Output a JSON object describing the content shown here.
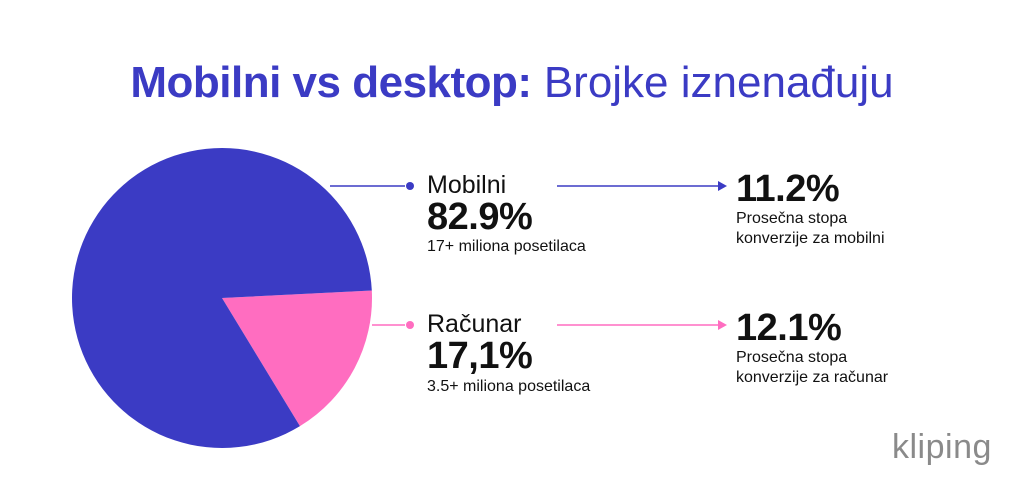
{
  "title": {
    "bold": "Mobilni vs desktop:",
    "light": "Brojke iznenađuju"
  },
  "chart_data": {
    "type": "pie",
    "slices": [
      {
        "name": "Mobilni",
        "value": 82.9,
        "color": "#3b3bc4"
      },
      {
        "name": "Računar",
        "value": 17.1,
        "color": "#ff6dc0"
      }
    ]
  },
  "mobile": {
    "name": "Mobilni",
    "share": "82.9%",
    "visitors": "17+ miliona posetilaca",
    "conversion": "11.2%",
    "conversion_desc_1": "Prosečna stopa",
    "conversion_desc_2": "konverzije za mobilni",
    "color": "#3b3bc4"
  },
  "desktop": {
    "name": "Računar",
    "share": "17,1%",
    "visitors": "3.5+ miliona posetilaca",
    "conversion": "12.1%",
    "conversion_desc_1": "Prosečna stopa",
    "conversion_desc_2": "konverzije za računar",
    "color": "#ff6dc0"
  },
  "logo": {
    "text": "kliping"
  }
}
